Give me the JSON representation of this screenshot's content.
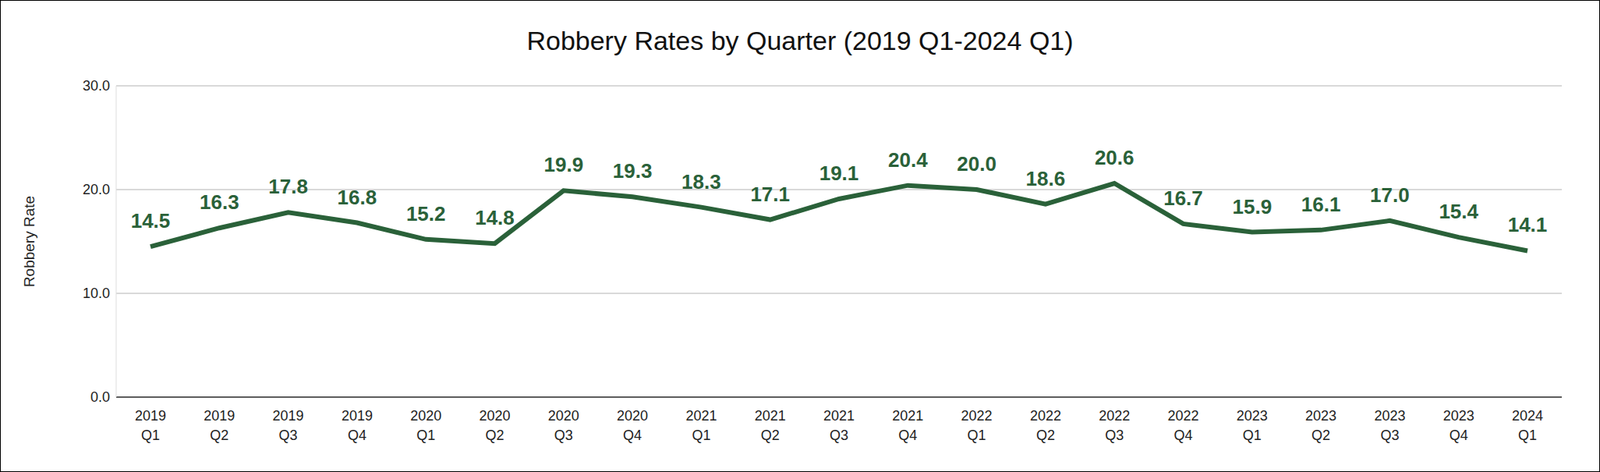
{
  "chart_data": {
    "type": "line",
    "title": "Robbery Rates by Quarter (2019 Q1-2024 Q1)",
    "y_label": "Robbery Rate",
    "categories": [
      "2019 Q1",
      "2019 Q2",
      "2019 Q3",
      "2019 Q4",
      "2020 Q1",
      "2020 Q2",
      "2020 Q3",
      "2020 Q4",
      "2021 Q1",
      "2021 Q2",
      "2021 Q3",
      "2021 Q4",
      "2022 Q1",
      "2022 Q2",
      "2022 Q3",
      "2022 Q4",
      "2023 Q1",
      "2023 Q2",
      "2023 Q3",
      "2023 Q4",
      "2024 Q1"
    ],
    "values": [
      14.5,
      16.3,
      17.8,
      16.8,
      15.2,
      14.8,
      19.9,
      19.3,
      18.3,
      17.1,
      19.1,
      20.4,
      20.0,
      18.6,
      20.6,
      16.7,
      15.9,
      16.1,
      17.0,
      15.4,
      14.1
    ],
    "value_labels": [
      "14.5",
      "16.3",
      "17.8",
      "16.8",
      "15.2",
      "14.8",
      "19.9",
      "19.3",
      "18.3",
      "17.1",
      "19.1",
      "20.4",
      "20.0",
      "18.6",
      "20.6",
      "16.7",
      "15.9",
      "16.1",
      "17.0",
      "15.4",
      "14.1"
    ],
    "color": "#2a6139",
    "ylim": [
      0,
      30
    ],
    "yticks": [
      {
        "value": 0,
        "label": "0.0"
      },
      {
        "value": 10,
        "label": "10.0"
      },
      {
        "value": 20,
        "label": "20.0"
      },
      {
        "value": 30,
        "label": "30.0"
      }
    ],
    "grid": true,
    "data_labels": true,
    "line_style": "solid"
  }
}
